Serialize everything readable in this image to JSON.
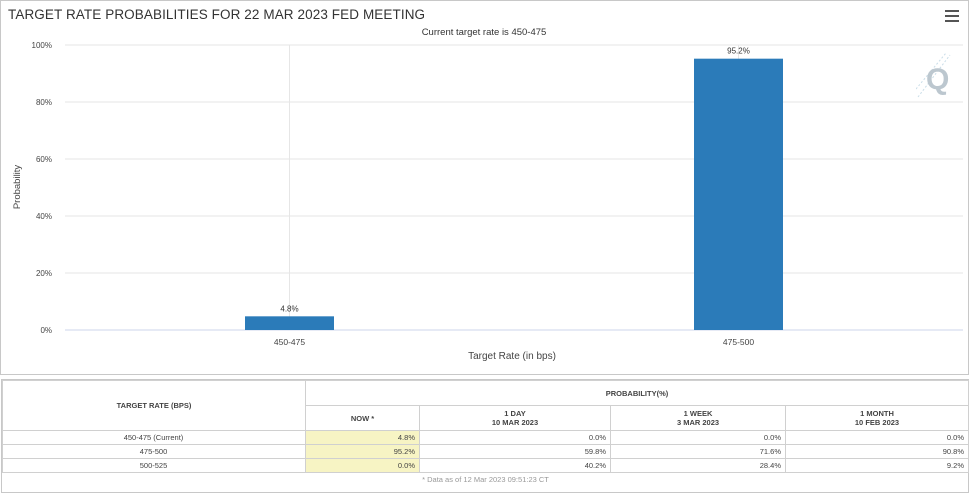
{
  "title": "TARGET RATE PROBABILITIES FOR 22 MAR 2023 FED MEETING",
  "menu_icon": "hamburger-menu-icon",
  "watermark_icon": "q-logo-icon",
  "chart_data": {
    "type": "bar",
    "title": "TARGET RATE PROBABILITIES FOR 22 MAR 2023 FED MEETING",
    "subtitle": "Current target rate is 450-475",
    "categories": [
      "450-475",
      "475-500"
    ],
    "values": [
      4.8,
      95.2
    ],
    "data_labels": [
      "4.8%",
      "95.2%"
    ],
    "xlabel": "Target Rate (in bps)",
    "ylabel": "Probability",
    "ylim": [
      0,
      100
    ],
    "yticks": [
      "0%",
      "20%",
      "40%",
      "60%",
      "80%",
      "100%"
    ],
    "ytick_values": [
      0,
      20,
      40,
      60,
      80,
      100
    ],
    "grid": true,
    "bar_color": "#2b7bb9"
  },
  "table": {
    "col_target": "TARGET RATE (BPS)",
    "col_probability": "PROBABILITY(%)",
    "sub_headers": [
      {
        "line1": "NOW *",
        "line2": ""
      },
      {
        "line1": "1 DAY",
        "line2": "10 MAR 2023"
      },
      {
        "line1": "1 WEEK",
        "line2": "3 MAR 2023"
      },
      {
        "line1": "1 MONTH",
        "line2": "10 FEB 2023"
      }
    ],
    "rows": [
      {
        "rate": "450-475 (Current)",
        "now": "4.8%",
        "day": "0.0%",
        "week": "0.0%",
        "month": "0.0%"
      },
      {
        "rate": "475-500",
        "now": "95.2%",
        "day": "59.8%",
        "week": "71.6%",
        "month": "90.8%"
      },
      {
        "rate": "500-525",
        "now": "0.0%",
        "day": "40.2%",
        "week": "28.4%",
        "month": "9.2%"
      }
    ],
    "footnote": "* Data as of 12 Mar 2023 09:51:23 CT"
  }
}
